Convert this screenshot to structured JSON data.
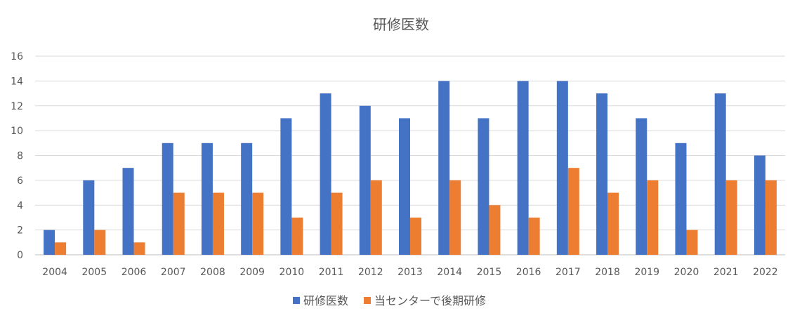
{
  "chart_data": {
    "type": "bar",
    "title": "研修医数",
    "xlabel": "",
    "ylabel": "",
    "ylim": [
      0,
      16
    ],
    "yticks": [
      0,
      2,
      4,
      6,
      8,
      10,
      12,
      14,
      16
    ],
    "grid": true,
    "legend_position": "bottom",
    "categories": [
      "2004",
      "2005",
      "2006",
      "2007",
      "2008",
      "2009",
      "2010",
      "2011",
      "2012",
      "2013",
      "2014",
      "2015",
      "2016",
      "2017",
      "2018",
      "2019",
      "2020",
      "2021",
      "2022"
    ],
    "series": [
      {
        "name": "研修医数",
        "color": "#4472C4",
        "values": [
          2,
          6,
          7,
          9,
          9,
          9,
          11,
          13,
          12,
          11,
          14,
          11,
          14,
          14,
          13,
          11,
          9,
          13,
          8
        ]
      },
      {
        "name": "当センターで後期研修",
        "color": "#ED7D31",
        "values": [
          1,
          2,
          1,
          5,
          5,
          5,
          3,
          5,
          6,
          3,
          6,
          4,
          3,
          7,
          5,
          6,
          2,
          6,
          6
        ]
      }
    ]
  }
}
